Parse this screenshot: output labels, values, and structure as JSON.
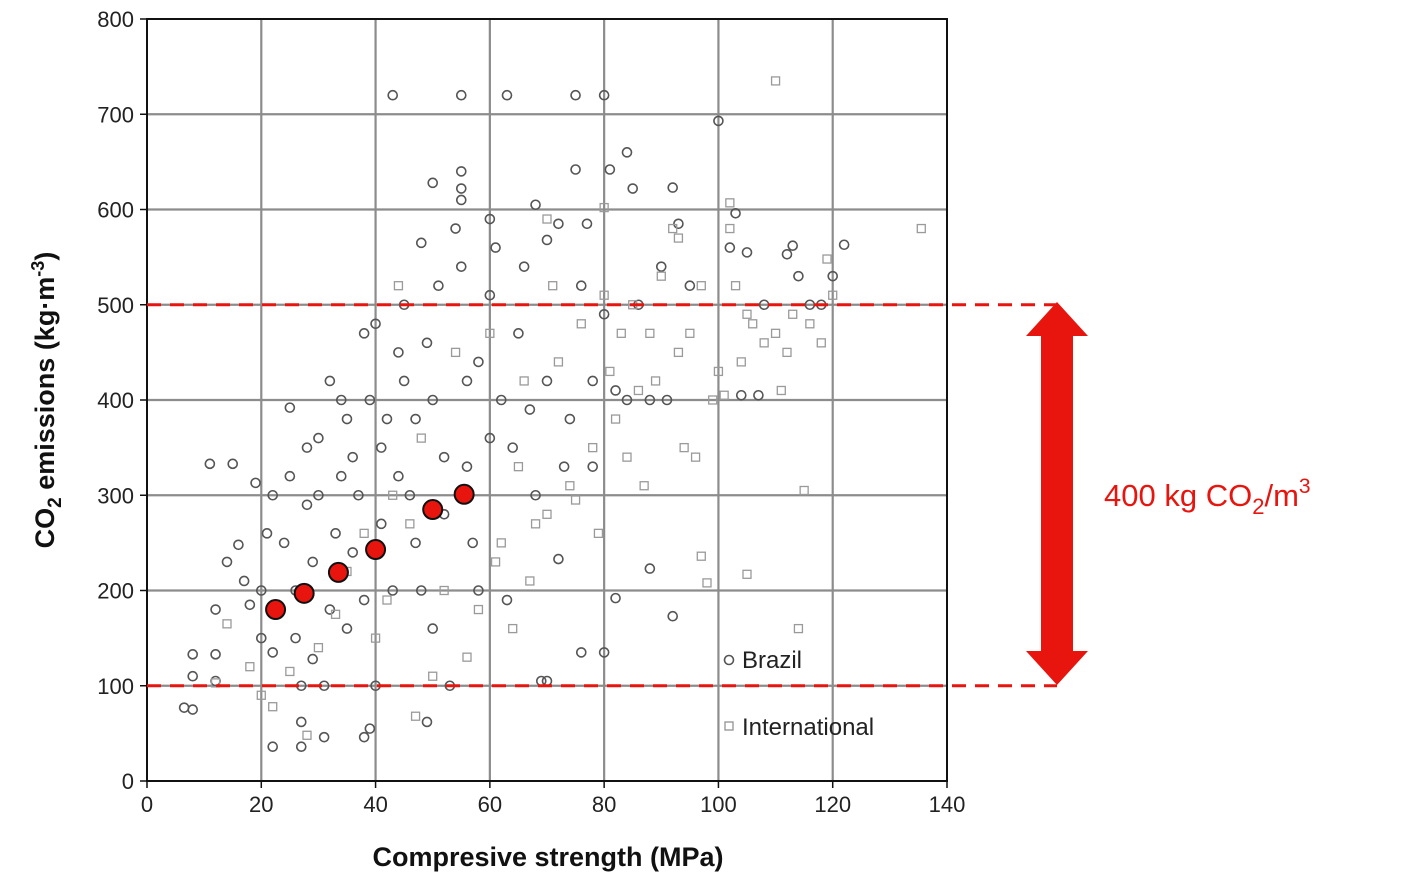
{
  "chart_data": {
    "type": "scatter",
    "title": "",
    "xlabel": "Compresive strength (MPa)",
    "ylabel": {
      "main": "CO",
      "sub": "2",
      "rest": " emissions (kg·m",
      "sup": "-3",
      "end": ")"
    },
    "xlim": [
      0,
      140
    ],
    "ylim": [
      0,
      800
    ],
    "x_ticks": [
      "0",
      "20",
      "40",
      "60",
      "80",
      "100",
      "120",
      "140"
    ],
    "y_ticks": [
      "0",
      "100",
      "200",
      "300",
      "400",
      "500",
      "600",
      "700",
      "800"
    ],
    "grid": true,
    "legend_position": "bottom-right",
    "colors": {
      "brazil": "#555555",
      "international": "#9a9a9a",
      "highlight": "#e8140e",
      "annotation": "#e8140e",
      "grid": "#8c8c8c"
    },
    "series": [
      {
        "name": "Brazil",
        "marker": "circle",
        "points": [
          [
            6.5,
            77
          ],
          [
            8,
            75
          ],
          [
            8,
            133
          ],
          [
            8,
            110
          ],
          [
            11,
            333
          ],
          [
            12,
            180
          ],
          [
            12,
            133
          ],
          [
            12,
            105
          ],
          [
            15,
            333
          ],
          [
            14,
            230
          ],
          [
            16,
            248
          ],
          [
            17,
            210
          ],
          [
            18,
            185
          ],
          [
            19,
            313
          ],
          [
            20,
            150
          ],
          [
            20,
            200
          ],
          [
            21,
            260
          ],
          [
            22,
            36
          ],
          [
            22,
            135
          ],
          [
            22,
            300
          ],
          [
            23,
            180
          ],
          [
            24,
            250
          ],
          [
            25,
            320
          ],
          [
            25,
            392
          ],
          [
            26,
            150
          ],
          [
            26,
            200
          ],
          [
            27,
            62
          ],
          [
            27,
            100
          ],
          [
            27,
            36
          ],
          [
            28,
            290
          ],
          [
            28,
            350
          ],
          [
            29,
            128
          ],
          [
            29,
            230
          ],
          [
            30,
            360
          ],
          [
            30,
            300
          ],
          [
            31,
            46
          ],
          [
            31,
            100
          ],
          [
            32,
            180
          ],
          [
            32,
            420
          ],
          [
            33,
            260
          ],
          [
            34,
            320
          ],
          [
            34,
            400
          ],
          [
            35,
            380
          ],
          [
            35,
            160
          ],
          [
            36,
            240
          ],
          [
            36,
            340
          ],
          [
            37,
            300
          ],
          [
            38,
            470
          ],
          [
            38,
            46
          ],
          [
            38,
            190
          ],
          [
            39,
            55
          ],
          [
            39,
            400
          ],
          [
            40,
            480
          ],
          [
            40,
            100
          ],
          [
            41,
            350
          ],
          [
            41,
            270
          ],
          [
            42,
            380
          ],
          [
            43,
            720
          ],
          [
            43,
            200
          ],
          [
            44,
            450
          ],
          [
            44,
            320
          ],
          [
            45,
            420
          ],
          [
            45,
            500
          ],
          [
            46,
            300
          ],
          [
            47,
            380
          ],
          [
            47,
            250
          ],
          [
            48,
            200
          ],
          [
            48,
            565
          ],
          [
            49,
            62
          ],
          [
            49,
            460
          ],
          [
            50,
            628
          ],
          [
            50,
            400
          ],
          [
            50,
            160
          ],
          [
            51,
            520
          ],
          [
            52,
            340
          ],
          [
            52,
            280
          ],
          [
            53,
            100
          ],
          [
            54,
            580
          ],
          [
            55,
            720
          ],
          [
            55,
            640
          ],
          [
            55,
            622
          ],
          [
            55,
            610
          ],
          [
            55,
            540
          ],
          [
            56,
            420
          ],
          [
            56,
            330
          ],
          [
            57,
            250
          ],
          [
            58,
            200
          ],
          [
            58,
            440
          ],
          [
            60,
            590
          ],
          [
            60,
            510
          ],
          [
            60,
            360
          ],
          [
            61,
            560
          ],
          [
            62,
            400
          ],
          [
            63,
            720
          ],
          [
            63,
            190
          ],
          [
            64,
            350
          ],
          [
            65,
            470
          ],
          [
            66,
            540
          ],
          [
            67,
            390
          ],
          [
            68,
            605
          ],
          [
            68,
            300
          ],
          [
            69,
            105
          ],
          [
            70,
            568
          ],
          [
            70,
            420
          ],
          [
            70,
            105
          ],
          [
            72,
            585
          ],
          [
            72,
            233
          ],
          [
            73,
            330
          ],
          [
            74,
            380
          ],
          [
            75,
            720
          ],
          [
            75,
            642
          ],
          [
            76,
            520
          ],
          [
            76,
            135
          ],
          [
            77,
            585
          ],
          [
            78,
            420
          ],
          [
            78,
            330
          ],
          [
            80,
            720
          ],
          [
            80,
            490
          ],
          [
            80,
            135
          ],
          [
            81,
            642
          ],
          [
            82,
            192
          ],
          [
            82,
            410
          ],
          [
            84,
            660
          ],
          [
            84,
            400
          ],
          [
            85,
            622
          ],
          [
            86,
            500
          ],
          [
            88,
            223
          ],
          [
            88,
            400
          ],
          [
            90,
            540
          ],
          [
            91,
            400
          ],
          [
            92,
            623
          ],
          [
            92,
            173
          ],
          [
            93,
            585
          ],
          [
            95,
            520
          ],
          [
            100,
            693
          ],
          [
            102,
            560
          ],
          [
            103,
            596
          ],
          [
            104,
            405
          ],
          [
            105,
            555
          ],
          [
            107,
            405
          ],
          [
            108,
            500
          ],
          [
            112,
            553
          ],
          [
            113,
            562
          ],
          [
            114,
            530
          ],
          [
            116,
            500
          ],
          [
            118,
            500
          ],
          [
            120,
            530
          ],
          [
            122,
            563
          ]
        ]
      },
      {
        "name": "International",
        "marker": "square",
        "points": [
          [
            12,
            103
          ],
          [
            14,
            165
          ],
          [
            18,
            120
          ],
          [
            20,
            90
          ],
          [
            22,
            78
          ],
          [
            25,
            115
          ],
          [
            28,
            48
          ],
          [
            30,
            140
          ],
          [
            33,
            175
          ],
          [
            35,
            220
          ],
          [
            38,
            260
          ],
          [
            40,
            150
          ],
          [
            42,
            190
          ],
          [
            43,
            300
          ],
          [
            44,
            520
          ],
          [
            46,
            270
          ],
          [
            47,
            68
          ],
          [
            48,
            360
          ],
          [
            50,
            110
          ],
          [
            52,
            200
          ],
          [
            54,
            450
          ],
          [
            55,
            300
          ],
          [
            56,
            130
          ],
          [
            58,
            180
          ],
          [
            60,
            470
          ],
          [
            61,
            230
          ],
          [
            62,
            250
          ],
          [
            64,
            160
          ],
          [
            65,
            330
          ],
          [
            66,
            420
          ],
          [
            67,
            210
          ],
          [
            68,
            270
          ],
          [
            70,
            590
          ],
          [
            70,
            280
          ],
          [
            71,
            520
          ],
          [
            72,
            440
          ],
          [
            74,
            310
          ],
          [
            75,
            295
          ],
          [
            76,
            480
          ],
          [
            78,
            350
          ],
          [
            79,
            260
          ],
          [
            80,
            602
          ],
          [
            80,
            510
          ],
          [
            81,
            430
          ],
          [
            82,
            380
          ],
          [
            83,
            470
          ],
          [
            84,
            340
          ],
          [
            85,
            500
          ],
          [
            86,
            410
          ],
          [
            87,
            310
          ],
          [
            88,
            470
          ],
          [
            89,
            420
          ],
          [
            90,
            530
          ],
          [
            92,
            580
          ],
          [
            93,
            570
          ],
          [
            93,
            450
          ],
          [
            94,
            350
          ],
          [
            95,
            470
          ],
          [
            96,
            340
          ],
          [
            97,
            520
          ],
          [
            97,
            236
          ],
          [
            98,
            208
          ],
          [
            99,
            400
          ],
          [
            100,
            430
          ],
          [
            101,
            405
          ],
          [
            102,
            607
          ],
          [
            102,
            580
          ],
          [
            103,
            520
          ],
          [
            104,
            440
          ],
          [
            105,
            490
          ],
          [
            105,
            217
          ],
          [
            106,
            480
          ],
          [
            108,
            460
          ],
          [
            110,
            735
          ],
          [
            110,
            470
          ],
          [
            111,
            410
          ],
          [
            112,
            450
          ],
          [
            113,
            490
          ],
          [
            114,
            160
          ],
          [
            115,
            305
          ],
          [
            116,
            480
          ],
          [
            118,
            460
          ],
          [
            119,
            548
          ],
          [
            120,
            510
          ],
          [
            135.5,
            580
          ]
        ]
      },
      {
        "name": "",
        "marker": "highlight",
        "points": [
          [
            22.5,
            180
          ],
          [
            27.5,
            197
          ],
          [
            33.5,
            219
          ],
          [
            40,
            243
          ],
          [
            50,
            285
          ],
          [
            55.5,
            301
          ]
        ]
      }
    ],
    "reference_lines": {
      "y": [
        100,
        500
      ],
      "label": {
        "pre": "400 kg CO",
        "sub": "2",
        "mid": "/m",
        "sup": "3"
      }
    }
  }
}
